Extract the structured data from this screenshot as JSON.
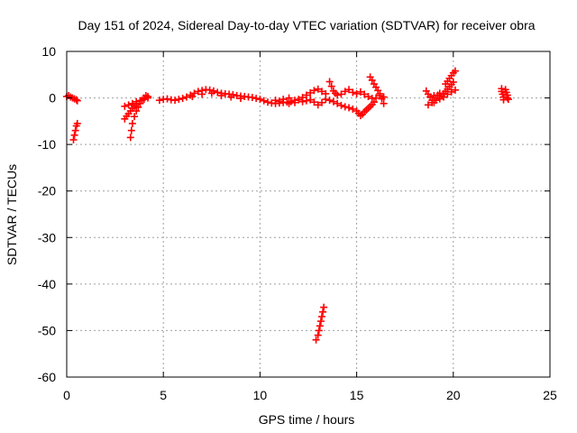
{
  "chart_data": {
    "type": "scatter",
    "title": "Day 151 of 2024, Sidereal Day-to-day VTEC variation (SDTVAR) for receiver obra",
    "xlabel": "GPS time / hours",
    "ylabel": "SDTVAR / TECUs",
    "xlim": [
      0,
      25
    ],
    "ylim": [
      -60,
      10
    ],
    "xticks": [
      0,
      5,
      10,
      15,
      20,
      25
    ],
    "xtick_labels": [
      "0",
      "5",
      "10",
      "15",
      "20",
      "25"
    ],
    "yticks": [
      -60,
      -50,
      -40,
      -30,
      -20,
      -10,
      0,
      10
    ],
    "ytick_labels": [
      "-60",
      "-50",
      "-40",
      "-30",
      "-20",
      "-10",
      "0",
      "10"
    ],
    "grid": true,
    "marker": "plus",
    "color": "#ff0000",
    "series": [
      {
        "name": "SDTVAR",
        "points": [
          [
            0.0,
            0.3
          ],
          [
            0.1,
            0.5
          ],
          [
            0.2,
            0.2
          ],
          [
            0.3,
            0.0
          ],
          [
            0.4,
            -0.2
          ],
          [
            0.5,
            -0.4
          ],
          [
            0.55,
            -0.6
          ],
          [
            0.35,
            -9.0
          ],
          [
            0.4,
            -8.0
          ],
          [
            0.45,
            -7.0
          ],
          [
            0.5,
            -6.0
          ],
          [
            0.55,
            -5.5
          ],
          [
            3.0,
            -4.5
          ],
          [
            3.1,
            -3.9
          ],
          [
            3.2,
            -3.4
          ],
          [
            3.3,
            -2.8
          ],
          [
            3.4,
            -2.2
          ],
          [
            3.5,
            -1.8
          ],
          [
            3.6,
            -1.4
          ],
          [
            3.0,
            -1.8
          ],
          [
            3.2,
            -1.5
          ],
          [
            3.4,
            -1.2
          ],
          [
            3.6,
            -0.8
          ],
          [
            3.8,
            -0.6
          ],
          [
            4.0,
            -0.3
          ],
          [
            4.2,
            0.0
          ],
          [
            3.3,
            -8.5
          ],
          [
            3.35,
            -7.0
          ],
          [
            3.4,
            -5.5
          ],
          [
            3.5,
            -4.0
          ],
          [
            3.6,
            -2.8
          ],
          [
            3.7,
            -2.0
          ],
          [
            3.8,
            -1.2
          ],
          [
            3.9,
            -0.5
          ],
          [
            4.0,
            0.0
          ],
          [
            4.1,
            0.5
          ],
          [
            4.2,
            0.3
          ],
          [
            4.8,
            -0.5
          ],
          [
            5.0,
            -0.3
          ],
          [
            5.2,
            -0.2
          ],
          [
            5.4,
            -0.4
          ],
          [
            5.6,
            -0.5
          ],
          [
            5.8,
            -0.3
          ],
          [
            6.0,
            -0.1
          ],
          [
            6.2,
            0.2
          ],
          [
            6.4,
            0.6
          ],
          [
            6.6,
            1.0
          ],
          [
            6.8,
            1.4
          ],
          [
            7.0,
            1.6
          ],
          [
            7.2,
            1.8
          ],
          [
            7.4,
            1.7
          ],
          [
            7.6,
            1.5
          ],
          [
            7.8,
            1.2
          ],
          [
            8.0,
            1.0
          ],
          [
            8.2,
            0.9
          ],
          [
            8.4,
            0.8
          ],
          [
            8.6,
            0.7
          ],
          [
            8.8,
            0.5
          ],
          [
            9.0,
            0.4
          ],
          [
            9.2,
            0.3
          ],
          [
            9.4,
            0.2
          ],
          [
            9.6,
            0.1
          ],
          [
            9.8,
            -0.1
          ],
          [
            10.0,
            -0.3
          ],
          [
            10.2,
            -0.6
          ],
          [
            10.4,
            -0.9
          ],
          [
            10.6,
            -1.1
          ],
          [
            10.8,
            -1.2
          ],
          [
            11.0,
            -1.1
          ],
          [
            11.2,
            -1.0
          ],
          [
            11.4,
            -0.9
          ],
          [
            11.6,
            -0.8
          ],
          [
            11.8,
            -0.5
          ],
          [
            12.0,
            -0.3
          ],
          [
            12.2,
            0.1
          ],
          [
            12.4,
            0.6
          ],
          [
            12.6,
            1.1
          ],
          [
            12.8,
            1.6
          ],
          [
            13.0,
            1.9
          ],
          [
            13.2,
            1.4
          ],
          [
            13.4,
            0.9
          ],
          [
            6.5,
            0.3
          ],
          [
            7.0,
            0.8
          ],
          [
            7.5,
            1.0
          ],
          [
            8.0,
            0.5
          ],
          [
            8.5,
            0.2
          ],
          [
            9.0,
            -0.1
          ],
          [
            10.8,
            -0.5
          ],
          [
            11.0,
            -0.7
          ],
          [
            11.2,
            -0.3
          ],
          [
            11.5,
            0.0
          ],
          [
            11.5,
            -1.2
          ],
          [
            11.8,
            -1.0
          ],
          [
            12.0,
            -0.4
          ],
          [
            12.2,
            -0.8
          ],
          [
            12.4,
            -0.6
          ],
          [
            12.6,
            -0.4
          ],
          [
            12.8,
            -0.9
          ],
          [
            13.0,
            -1.5
          ],
          [
            13.2,
            -1.0
          ],
          [
            13.4,
            -0.3
          ],
          [
            12.9,
            -52.0
          ],
          [
            13.0,
            -51.0
          ],
          [
            13.05,
            -50.0
          ],
          [
            13.1,
            -49.0
          ],
          [
            13.15,
            -48.0
          ],
          [
            13.2,
            -47.0
          ],
          [
            13.25,
            -46.0
          ],
          [
            13.3,
            -45.0
          ],
          [
            13.6,
            3.5
          ],
          [
            13.7,
            2.5
          ],
          [
            13.8,
            1.5
          ],
          [
            13.9,
            1.0
          ],
          [
            14.0,
            0.6
          ],
          [
            14.2,
            0.8
          ],
          [
            14.4,
            1.4
          ],
          [
            14.6,
            1.8
          ],
          [
            14.8,
            1.2
          ],
          [
            15.0,
            0.9
          ],
          [
            15.2,
            1.3
          ],
          [
            15.4,
            0.8
          ],
          [
            15.6,
            0.3
          ],
          [
            15.8,
            -0.1
          ],
          [
            16.0,
            0.0
          ],
          [
            16.2,
            0.5
          ],
          [
            16.4,
            0.2
          ],
          [
            13.6,
            -0.5
          ],
          [
            13.8,
            -0.8
          ],
          [
            14.0,
            -1.2
          ],
          [
            14.2,
            -1.6
          ],
          [
            14.4,
            -1.9
          ],
          [
            14.6,
            -2.1
          ],
          [
            14.8,
            -2.4
          ],
          [
            15.0,
            -2.8
          ],
          [
            15.1,
            -3.3
          ],
          [
            15.2,
            -3.8
          ],
          [
            15.3,
            -3.5
          ],
          [
            15.4,
            -3.0
          ],
          [
            15.5,
            -2.6
          ],
          [
            15.6,
            -2.2
          ],
          [
            15.7,
            -1.8
          ],
          [
            15.8,
            -1.4
          ],
          [
            15.9,
            -0.9
          ],
          [
            15.7,
            4.5
          ],
          [
            15.8,
            3.8
          ],
          [
            15.9,
            3.0
          ],
          [
            16.0,
            2.3
          ],
          [
            16.1,
            1.6
          ],
          [
            16.2,
            0.9
          ],
          [
            16.3,
            -0.2
          ],
          [
            16.4,
            -1.2
          ],
          [
            18.6,
            1.5
          ],
          [
            18.7,
            0.8
          ],
          [
            18.8,
            0.2
          ],
          [
            18.9,
            -0.5
          ],
          [
            19.0,
            -1.0
          ],
          [
            19.0,
            0.5
          ],
          [
            19.1,
            0.0
          ],
          [
            19.2,
            0.6
          ],
          [
            19.3,
            1.0
          ],
          [
            19.4,
            0.4
          ],
          [
            19.5,
            0.9
          ],
          [
            19.6,
            1.4
          ],
          [
            19.7,
            1.9
          ],
          [
            19.8,
            2.4
          ],
          [
            19.9,
            2.9
          ],
          [
            20.0,
            3.4
          ],
          [
            19.6,
            3.0
          ],
          [
            19.7,
            3.6
          ],
          [
            19.8,
            4.2
          ],
          [
            19.9,
            4.8
          ],
          [
            20.0,
            5.4
          ],
          [
            20.1,
            5.8
          ],
          [
            18.7,
            -1.5
          ],
          [
            18.9,
            -1.0
          ],
          [
            19.1,
            -0.5
          ],
          [
            19.3,
            -0.2
          ],
          [
            19.5,
            0.2
          ],
          [
            19.7,
            0.8
          ],
          [
            19.9,
            1.3
          ],
          [
            20.1,
            1.7
          ],
          [
            22.5,
            2.0
          ],
          [
            22.5,
            1.4
          ],
          [
            22.55,
            0.8
          ],
          [
            22.6,
            0.2
          ],
          [
            22.6,
            -0.4
          ],
          [
            22.7,
            1.8
          ],
          [
            22.75,
            1.2
          ],
          [
            22.8,
            0.6
          ],
          [
            22.8,
            0.0
          ],
          [
            22.85,
            -0.3
          ]
        ]
      }
    ]
  }
}
